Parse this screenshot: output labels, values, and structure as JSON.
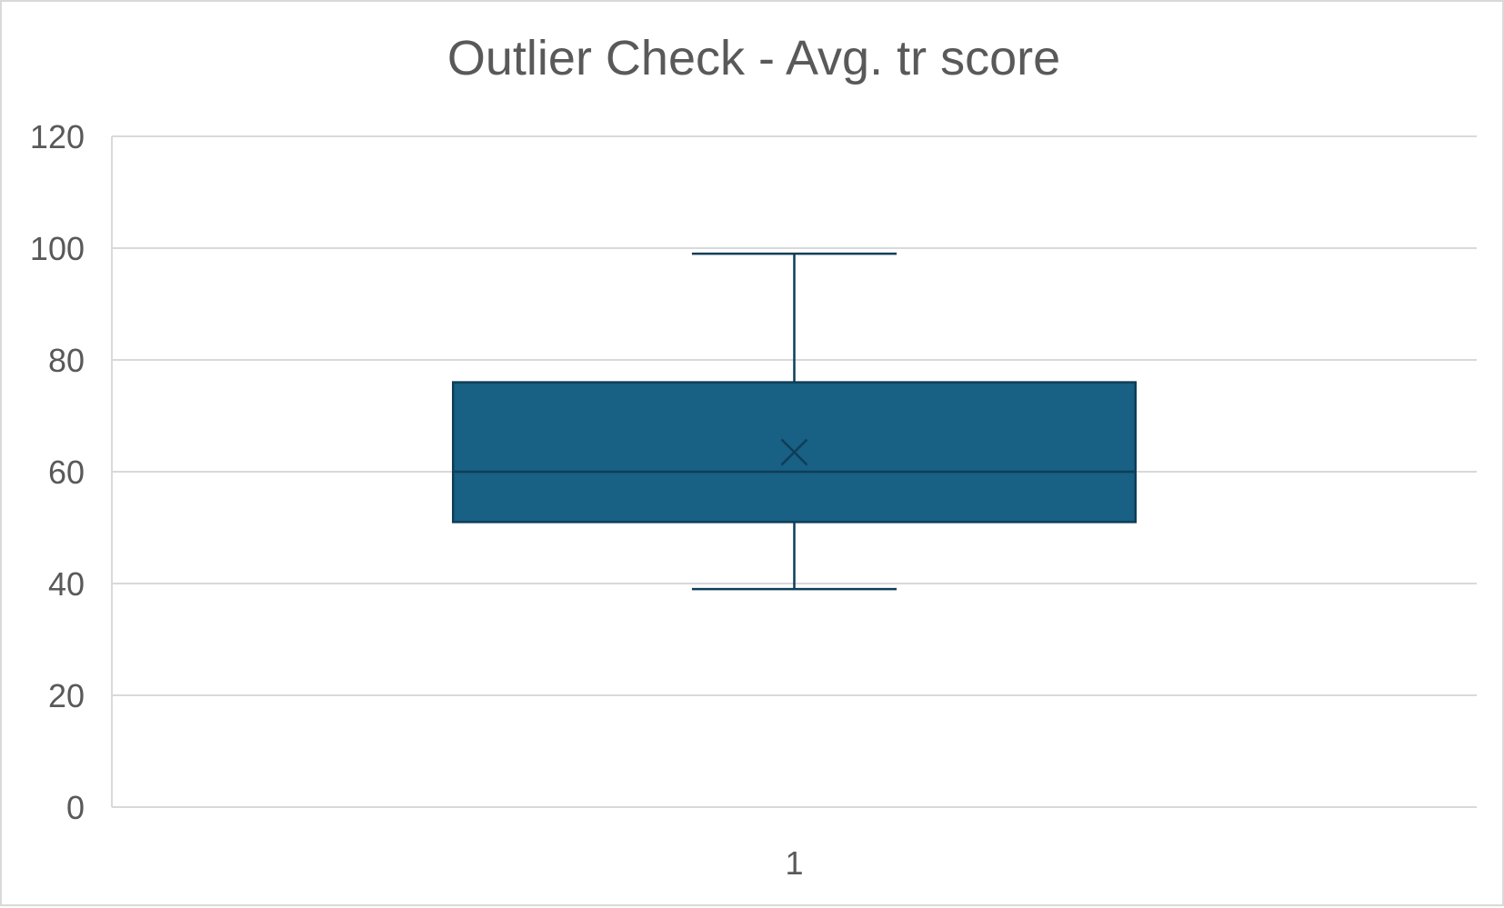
{
  "chart_data": {
    "type": "box",
    "title": "Outlier Check - Avg. tr score",
    "xlabel": "",
    "ylabel": "",
    "ylim": [
      0,
      120
    ],
    "y_ticks": [
      0,
      20,
      40,
      60,
      80,
      100,
      120
    ],
    "y_tick_labels": [
      "0",
      "20",
      "40",
      "60",
      "80",
      "100",
      "120"
    ],
    "categories": [
      "1"
    ],
    "grid": true,
    "legend": "none",
    "series": [
      {
        "category": "1",
        "min": 39,
        "q1": 51,
        "median": 60,
        "mean": 63.5,
        "q3": 76,
        "max": 99
      }
    ],
    "colors": {
      "box_fill": "#186084",
      "box_stroke": "#0e3e58",
      "whisker": "#0e3e58",
      "gridline": "#d9d9d9",
      "text": "#595959"
    }
  }
}
